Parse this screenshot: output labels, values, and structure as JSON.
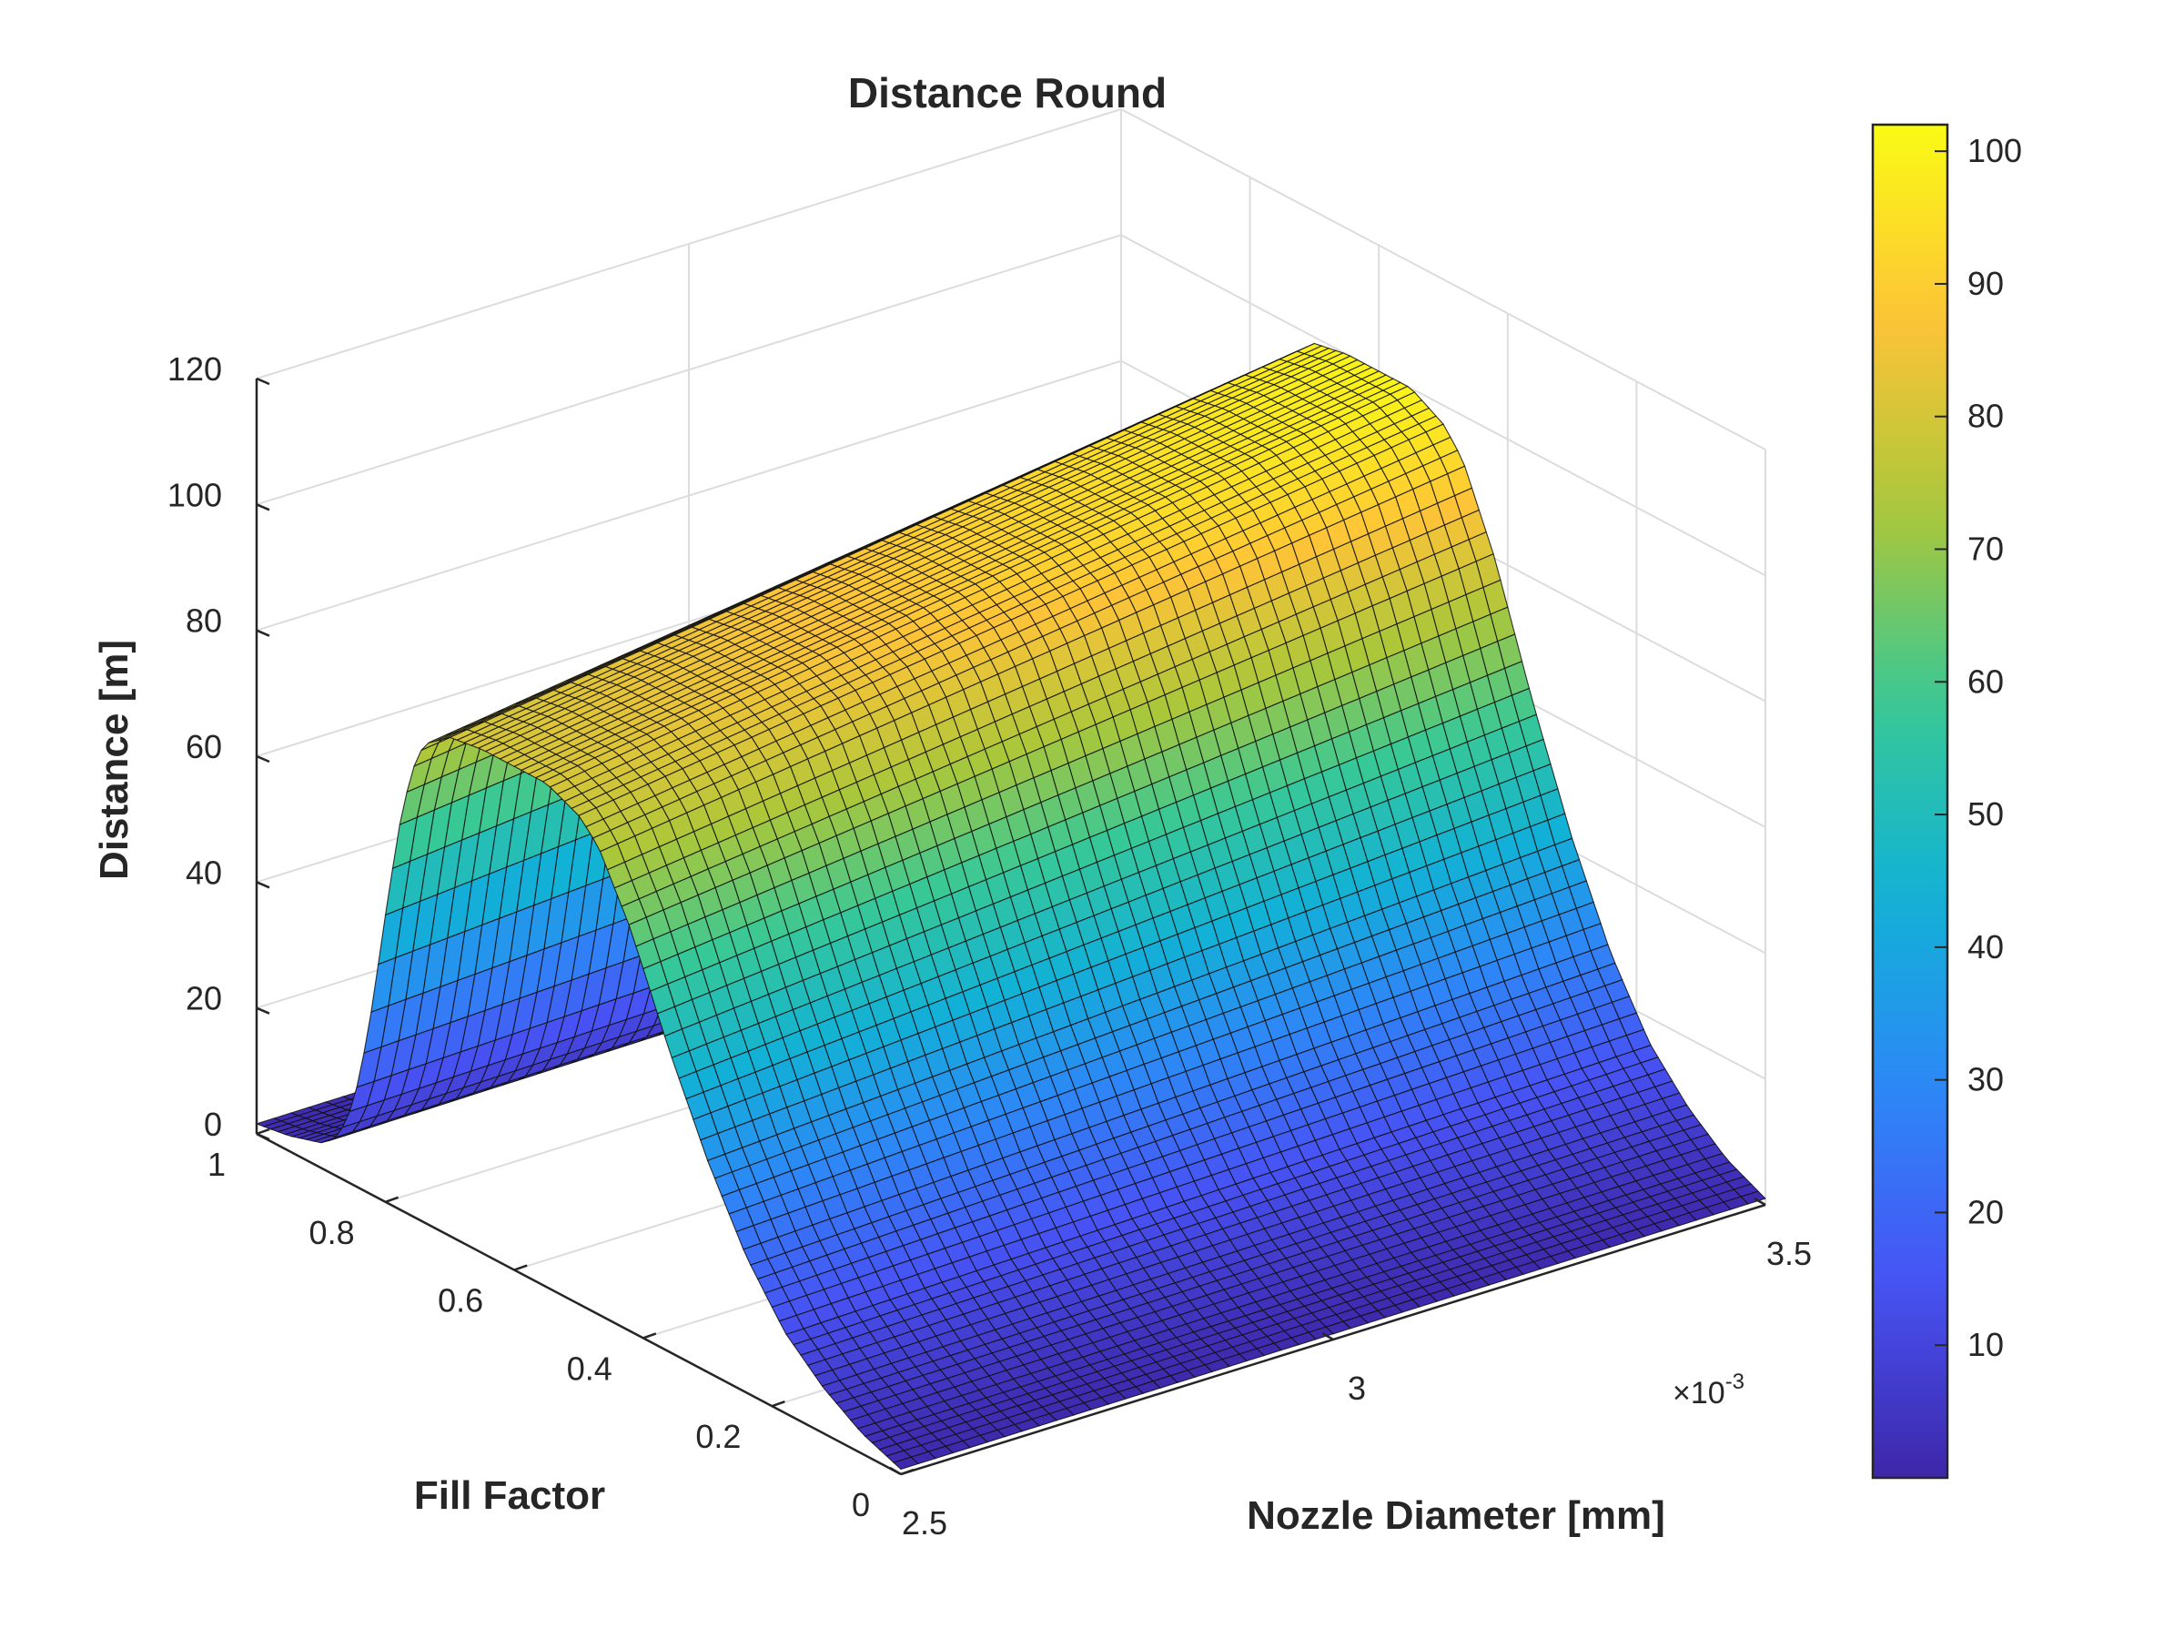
{
  "chart_data": {
    "type": "surface",
    "title": "Distance Round",
    "xlabel": "Nozzle Diameter [mm]",
    "ylabel": "Fill Factor",
    "zlabel": "Distance [m]",
    "x_multiplier_text": "×10",
    "x_multiplier_exp": "-3",
    "xlim": [
      0.0025,
      0.0035
    ],
    "ylim": [
      0,
      1
    ],
    "zlim": [
      0,
      120
    ],
    "x_ticks": [
      0.0025,
      0.003,
      0.0035
    ],
    "x_tick_labels": [
      "2.5",
      "3",
      "3.5"
    ],
    "y_ticks": [
      0,
      0.2,
      0.4,
      0.6,
      0.8,
      1
    ],
    "y_tick_labels": [
      "0",
      "0.2",
      "0.4",
      "0.6",
      "0.8",
      "1"
    ],
    "z_ticks": [
      0,
      20,
      40,
      60,
      80,
      100,
      120
    ],
    "z_tick_labels": [
      "0",
      "20",
      "40",
      "60",
      "80",
      "100",
      "120"
    ],
    "grid": true,
    "colormap": "parula",
    "colorbar": {
      "placement": "right",
      "range": [
        0,
        102
      ],
      "ticks": [
        10,
        20,
        30,
        40,
        50,
        60,
        70,
        80,
        90,
        100
      ],
      "tick_labels": [
        "10",
        "20",
        "30",
        "40",
        "50",
        "60",
        "70",
        "80",
        "90",
        "100"
      ]
    },
    "surface_description": "ridge peaking around fill factor 0.55–0.75; peak distance rises from ~80 m at 2.5e-3 to ~100 m at 3.5e-3; near 0 at fill factor 0 and 1",
    "grid_size": {
      "x": 50,
      "y": 90
    },
    "profile_fill_factor": [
      0,
      0.06,
      0.12,
      0.18,
      0.24,
      0.3,
      0.36,
      0.42,
      0.47,
      0.5,
      0.55,
      0.6,
      0.65,
      0.7,
      0.74,
      0.76,
      0.78,
      0.8,
      0.82,
      0.84,
      0.86,
      0.88,
      0.9,
      0.95,
      1
    ],
    "profile_relative": [
      0.01,
      0.04,
      0.09,
      0.16,
      0.27,
      0.42,
      0.6,
      0.8,
      0.93,
      0.97,
      1.0,
      1.0,
      1.0,
      0.99,
      0.95,
      0.88,
      0.75,
      0.57,
      0.38,
      0.22,
      0.12,
      0.07,
      0.05,
      0.03,
      0.02
    ],
    "peak_distance_at_x_min": 80,
    "peak_distance_at_x_max": 100
  }
}
